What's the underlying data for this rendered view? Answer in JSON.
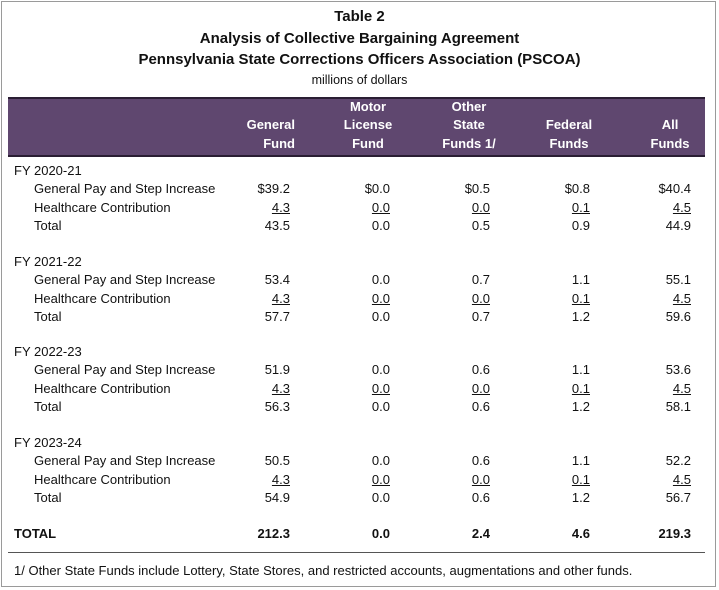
{
  "title_lines": [
    "Table 2",
    "Analysis of Collective Bargaining Agreement",
    "Pennsylvania State Corrections Officers Association (PSCOA)"
  ],
  "subtitle": "millions of dollars",
  "columns": [
    {
      "lines": [
        "",
        "General",
        "Fund"
      ]
    },
    {
      "lines": [
        "Motor",
        "License",
        "Fund"
      ]
    },
    {
      "lines": [
        "Other",
        "State",
        "Funds 1/"
      ]
    },
    {
      "lines": [
        "",
        "Federal",
        "Funds"
      ]
    },
    {
      "lines": [
        "",
        "All",
        "Funds"
      ]
    }
  ],
  "groups": [
    {
      "label": "FY 2020-21",
      "rows": [
        {
          "label": "General Pay and Step Increase",
          "values": [
            "$39.2",
            "$0.0",
            "$0.5",
            "$0.8",
            "$40.4"
          ]
        },
        {
          "label": "Healthcare Contribution",
          "values": [
            "4.3",
            "0.0",
            "0.0",
            "0.1",
            "4.5"
          ]
        },
        {
          "label": "Total",
          "values": [
            "43.5",
            "0.0",
            "0.5",
            "0.9",
            "44.9"
          ]
        }
      ]
    },
    {
      "label": "FY 2021-22",
      "rows": [
        {
          "label": "General Pay and Step Increase",
          "values": [
            "53.4",
            "0.0",
            "0.7",
            "1.1",
            "55.1"
          ]
        },
        {
          "label": "Healthcare Contribution",
          "values": [
            "4.3",
            "0.0",
            "0.0",
            "0.1",
            "4.5"
          ]
        },
        {
          "label": "Total",
          "values": [
            "57.7",
            "0.0",
            "0.7",
            "1.2",
            "59.6"
          ]
        }
      ]
    },
    {
      "label": "FY 2022-23",
      "rows": [
        {
          "label": "General Pay and Step Increase",
          "values": [
            "51.9",
            "0.0",
            "0.6",
            "1.1",
            "53.6"
          ]
        },
        {
          "label": "Healthcare Contribution",
          "values": [
            "4.3",
            "0.0",
            "0.0",
            "0.1",
            "4.5"
          ]
        },
        {
          "label": "Total",
          "values": [
            "56.3",
            "0.0",
            "0.6",
            "1.2",
            "58.1"
          ]
        }
      ]
    },
    {
      "label": "FY 2023-24",
      "rows": [
        {
          "label": "General Pay and Step Increase",
          "values": [
            "50.5",
            "0.0",
            "0.6",
            "1.1",
            "52.2"
          ]
        },
        {
          "label": "Healthcare Contribution",
          "values": [
            "4.3",
            "0.0",
            "0.0",
            "0.1",
            "4.5"
          ]
        },
        {
          "label": "Total",
          "values": [
            "54.9",
            "0.0",
            "0.6",
            "1.2",
            "56.7"
          ]
        }
      ]
    }
  ],
  "total": {
    "label": "TOTAL",
    "values": [
      "212.3",
      "0.0",
      "2.4",
      "4.6",
      "219.3"
    ]
  },
  "footnote": "1/ Other State Funds include Lottery, State Stores, and restricted accounts, augmentations and other funds.",
  "colors": {
    "header_bg": "#5f476f",
    "header_text": "#ffffff"
  }
}
